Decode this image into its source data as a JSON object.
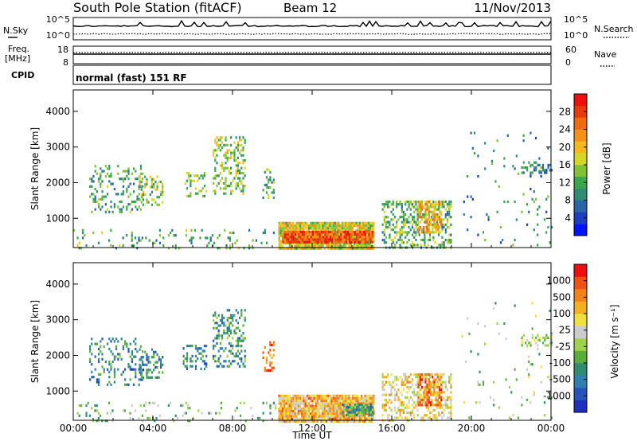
{
  "header": {
    "station": "South Pole Station (fitACF)",
    "beam": "Beam 12",
    "date": "11/Nov/2013"
  },
  "noise_panel": {
    "left_label": "N.Sky",
    "right_label": "N.Search",
    "left_ticks": [
      "10^5",
      "10^0"
    ],
    "right_ticks": [
      "10^5",
      "10^0"
    ]
  },
  "freq_panel": {
    "left_label_top": "Freq.",
    "left_label_bottom": "[MHz]",
    "right_label": "Nave",
    "left_ticks": [
      "18",
      "8"
    ],
    "right_ticks": [
      "60",
      "0"
    ]
  },
  "cpid_panel": {
    "label": "CPID",
    "mode_text": "normal (fast) 151 RF"
  },
  "chart_data": [
    {
      "type": "heatmap",
      "name": "power",
      "ylabel": "Slant Range [km]",
      "ylim": [
        180,
        4600
      ],
      "yticks": [
        "1000",
        "2000",
        "3000",
        "4000"
      ],
      "xlim": [
        0,
        24
      ],
      "colorbar": {
        "label": "Power [dB]",
        "range": [
          0,
          32
        ],
        "ticks": [
          "4",
          "8",
          "12",
          "16",
          "20",
          "24",
          "28"
        ]
      },
      "scatter_regions": [
        {
          "t0": 0.0,
          "t1": 10.2,
          "r0": 180,
          "r1": 700,
          "density": 0.1,
          "level": 0.35
        },
        {
          "t0": 0.8,
          "t1": 3.5,
          "r0": 1200,
          "r1": 2500,
          "density": 0.22,
          "level": 0.35
        },
        {
          "t0": 3.3,
          "t1": 4.5,
          "r0": 1400,
          "r1": 2200,
          "density": 0.35,
          "level": 0.45
        },
        {
          "t0": 5.5,
          "t1": 6.7,
          "r0": 1600,
          "r1": 2300,
          "density": 0.3,
          "level": 0.4
        },
        {
          "t0": 7.0,
          "t1": 8.6,
          "r0": 1700,
          "r1": 3300,
          "density": 0.35,
          "level": 0.45
        },
        {
          "t0": 9.5,
          "t1": 10.1,
          "r0": 1600,
          "r1": 2400,
          "density": 0.35,
          "level": 0.4
        },
        {
          "t0": 10.3,
          "t1": 15.1,
          "r0": 180,
          "r1": 900,
          "density": 0.95,
          "level": 0.55
        },
        {
          "t0": 10.5,
          "t1": 15.0,
          "r0": 300,
          "r1": 650,
          "density": 0.95,
          "level": 0.85
        },
        {
          "t0": 15.5,
          "t1": 19.0,
          "r0": 200,
          "r1": 1500,
          "density": 0.4,
          "level": 0.4
        },
        {
          "t0": 17.3,
          "t1": 18.5,
          "r0": 600,
          "r1": 1500,
          "density": 0.6,
          "level": 0.65
        },
        {
          "t0": 19.5,
          "t1": 24.0,
          "r0": 200,
          "r1": 3500,
          "density": 0.03,
          "level": 0.3
        },
        {
          "t0": 22.5,
          "t1": 24.0,
          "r0": 2300,
          "r1": 2600,
          "density": 0.45,
          "level": 0.3
        }
      ]
    },
    {
      "type": "heatmap",
      "name": "velocity",
      "ylabel": "Slant Range [km]",
      "xlabel": "Time UT",
      "ylim": [
        180,
        4600
      ],
      "yticks": [
        "1000",
        "2000",
        "3000",
        "4000"
      ],
      "xlim": [
        0,
        24
      ],
      "xticks": [
        "00:00",
        "04:00",
        "08:00",
        "12:00",
        "16:00",
        "20:00",
        "00:00"
      ],
      "colorbar": {
        "label": "Velocity [m s⁻¹]",
        "labels": [
          "1000",
          "500",
          "100",
          "25",
          "-25",
          "-100",
          "-500",
          "-1000"
        ]
      },
      "scatter_regions": [
        {
          "t0": 0.0,
          "t1": 10.2,
          "r0": 180,
          "r1": 700,
          "density": 0.1,
          "level": 0.4
        },
        {
          "t0": 0.8,
          "t1": 3.5,
          "r0": 1200,
          "r1": 2500,
          "density": 0.22,
          "level": 0.25
        },
        {
          "t0": 3.3,
          "t1": 4.5,
          "r0": 1400,
          "r1": 2200,
          "density": 0.35,
          "level": 0.25
        },
        {
          "t0": 5.5,
          "t1": 6.7,
          "r0": 1600,
          "r1": 2300,
          "density": 0.3,
          "level": 0.25
        },
        {
          "t0": 7.0,
          "t1": 8.6,
          "r0": 1700,
          "r1": 3300,
          "density": 0.35,
          "level": 0.3
        },
        {
          "t0": 9.5,
          "t1": 10.1,
          "r0": 1600,
          "r1": 2400,
          "density": 0.35,
          "level": 0.85
        },
        {
          "t0": 10.3,
          "t1": 15.1,
          "r0": 180,
          "r1": 900,
          "density": 0.95,
          "level": 0.68
        },
        {
          "t0": 13.5,
          "t1": 15.0,
          "r0": 300,
          "r1": 650,
          "density": 0.8,
          "level": 0.3
        },
        {
          "t0": 15.5,
          "t1": 19.0,
          "r0": 200,
          "r1": 1500,
          "density": 0.4,
          "level": 0.6
        },
        {
          "t0": 17.3,
          "t1": 18.5,
          "r0": 600,
          "r1": 1500,
          "density": 0.6,
          "level": 0.8
        },
        {
          "t0": 19.5,
          "t1": 24.0,
          "r0": 200,
          "r1": 3500,
          "density": 0.03,
          "level": 0.45
        },
        {
          "t0": 22.5,
          "t1": 24.0,
          "r0": 2300,
          "r1": 2600,
          "density": 0.45,
          "level": 0.5
        }
      ]
    }
  ]
}
